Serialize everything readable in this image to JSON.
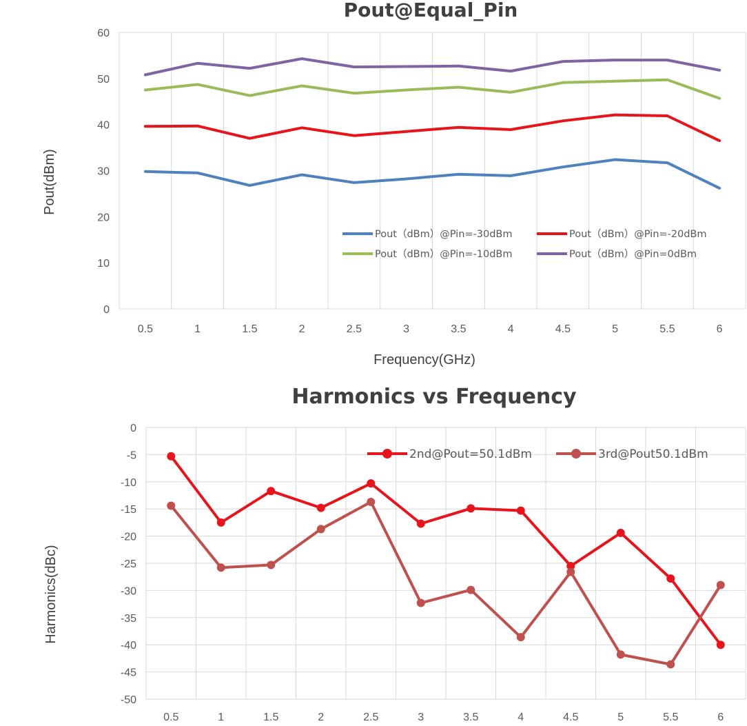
{
  "chart_data": [
    {
      "type": "line",
      "title": "Pout@Equal_Pin",
      "xlabel": "Frequency(GHz)",
      "ylabel": "Pout(dBm)",
      "categories": [
        "0.5",
        "1",
        "1.5",
        "2",
        "2.5",
        "3",
        "3.5",
        "4",
        "4.5",
        "5",
        "5.5",
        "6"
      ],
      "ylim": [
        0,
        60
      ],
      "yticks": [
        "0",
        "10",
        "20",
        "30",
        "40",
        "50",
        "60"
      ],
      "grid": "vertical",
      "legend_position": "bottom-right inside plot",
      "series": [
        {
          "name": "Pout（dBm）@Pin=-30dBm",
          "color": "#4f81bd",
          "values": [
            29.8,
            29.5,
            26.8,
            29.1,
            27.4,
            28.2,
            29.2,
            28.9,
            30.8,
            32.4,
            31.7,
            26.2
          ]
        },
        {
          "name": "Pout（dBm）@Pin=-20dBm",
          "color": "#e8141c",
          "values": [
            39.6,
            39.7,
            37.0,
            39.3,
            37.6,
            38.5,
            39.4,
            38.9,
            40.8,
            42.1,
            41.9,
            36.5
          ]
        },
        {
          "name": "Pout（dBm）@Pin=-10dBm",
          "color": "#9bbb59",
          "values": [
            47.5,
            48.7,
            46.3,
            48.4,
            46.8,
            47.5,
            48.1,
            47.0,
            49.1,
            49.4,
            49.7,
            45.7
          ]
        },
        {
          "name": "Pout（dBm）@Pin=0dBm",
          "color": "#8064a2",
          "values": [
            50.8,
            53.3,
            52.2,
            54.3,
            52.5,
            52.6,
            52.7,
            51.6,
            53.7,
            54.0,
            54.0,
            51.8
          ]
        }
      ]
    },
    {
      "type": "line",
      "title": "Harmonics vs Frequency",
      "xlabel": "",
      "ylabel": "Harmonics(dBc)",
      "categories": [
        "0.5",
        "1",
        "1.5",
        "2",
        "2.5",
        "3",
        "3.5",
        "4",
        "4.5",
        "5",
        "5.5",
        "6"
      ],
      "ylim": [
        -50,
        0
      ],
      "yticks": [
        "0",
        "-5",
        "-10",
        "-15",
        "-20",
        "-25",
        "-30",
        "-35",
        "-40",
        "-45",
        "-50"
      ],
      "grid": "both",
      "markers": true,
      "legend_position": "top-right inside plot",
      "series": [
        {
          "name": "2nd@Pout=50.1dBm",
          "color": "#e8141c",
          "values": [
            -5.3,
            -17.5,
            -11.7,
            -14.8,
            -10.3,
            -17.7,
            -14.9,
            -15.3,
            -25.5,
            -19.4,
            -27.8,
            -40.0
          ]
        },
        {
          "name": "3rd@Pout50.1dBm",
          "color": "#c0504d",
          "values": [
            -14.4,
            -25.8,
            -25.3,
            -18.7,
            -13.7,
            -32.3,
            -29.9,
            -38.6,
            -26.6,
            -41.8,
            -43.6,
            -29.0
          ]
        }
      ]
    }
  ]
}
